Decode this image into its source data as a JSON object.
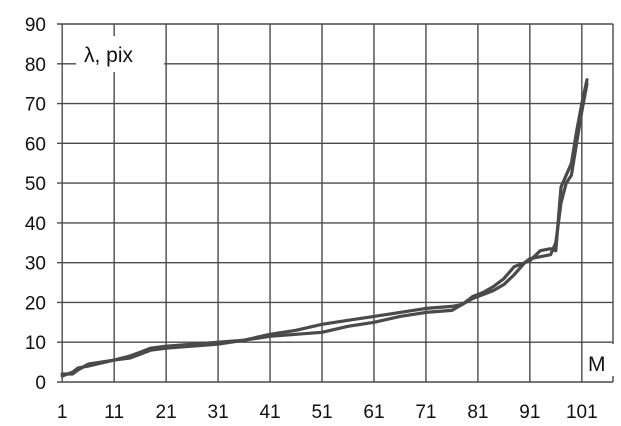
{
  "chart_data": {
    "type": "line",
    "title": "",
    "xlabel": "M",
    "ylabel": "λ, pix",
    "xlim": [
      0,
      107
    ],
    "ylim": [
      0,
      90
    ],
    "grid": true,
    "legend": "none",
    "line_color": "#4a4a4a",
    "x_ticks": [
      "1",
      "11",
      "21",
      "31",
      "41",
      "51",
      "61",
      "71",
      "81",
      "91",
      "101"
    ],
    "y_ticks": [
      "0",
      "10",
      "20",
      "30",
      "40",
      "50",
      "60",
      "70",
      "80",
      "90"
    ],
    "series": [
      {
        "x": [
          1,
          3,
          4,
          6,
          11,
          14,
          16,
          18,
          21,
          26,
          31,
          36,
          41,
          46,
          51,
          56,
          61,
          66,
          71,
          76,
          78,
          80,
          82,
          84,
          86,
          88,
          90,
          91,
          93,
          95,
          96,
          97,
          98,
          99,
          100,
          101,
          102
        ],
        "y": [
          2,
          2,
          3,
          4.5,
          5.5,
          6.5,
          7.5,
          8.5,
          9,
          9.5,
          10,
          10.5,
          11.5,
          12,
          12.5,
          14,
          15,
          16.5,
          17.5,
          18,
          19.5,
          21,
          22,
          23,
          24.5,
          27,
          30,
          31,
          31.5,
          32,
          35,
          45,
          50,
          52,
          60,
          68,
          75
        ]
      },
      {
        "x": [
          1,
          3,
          4,
          6,
          11,
          14,
          16,
          18,
          21,
          26,
          31,
          36,
          41,
          46,
          51,
          56,
          61,
          66,
          71,
          76,
          78,
          80,
          82,
          84,
          86,
          88,
          90,
          91,
          93,
          95,
          96,
          97,
          98,
          99,
          100,
          101,
          102
        ],
        "y": [
          1.5,
          2.5,
          3.5,
          4,
          5.5,
          6,
          7,
          8,
          8.5,
          9,
          9.5,
          10.5,
          12,
          13,
          14.5,
          15.5,
          16.5,
          17.5,
          18.5,
          19,
          19.5,
          21.5,
          22.5,
          24,
          26,
          29,
          30,
          30.5,
          33,
          33.5,
          33,
          49,
          52,
          55,
          63,
          70,
          76
        ]
      }
    ]
  }
}
